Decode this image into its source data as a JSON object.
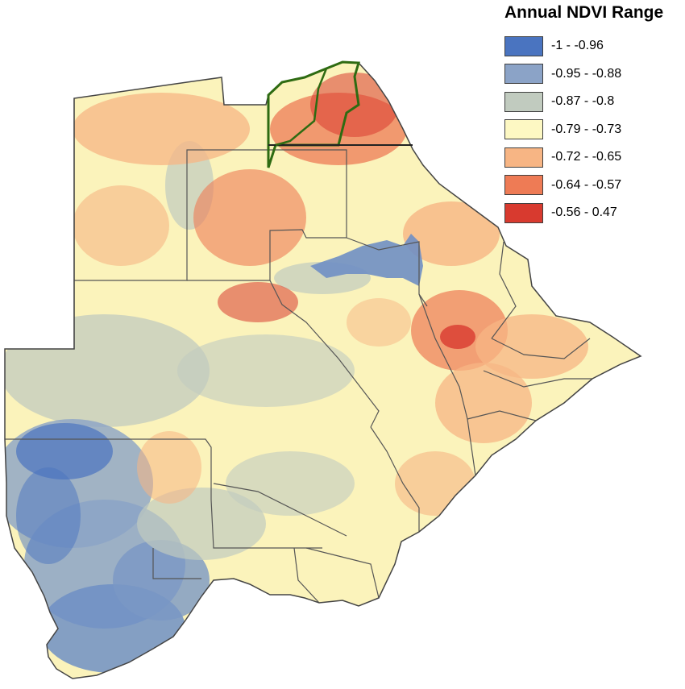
{
  "legend": {
    "title": "Annual NDVI Range",
    "items": [
      {
        "label": "-1 - -0.96",
        "color": "#4a74c0"
      },
      {
        "label": "-0.95 - -0.88",
        "color": "#8ba3c7"
      },
      {
        "label": "-0.87 - -0.8",
        "color": "#c1cbbf"
      },
      {
        "label": "-0.79 - -0.73",
        "color": "#fdf8c3"
      },
      {
        "label": "-0.72 - -0.65",
        "color": "#f7b584"
      },
      {
        "label": "-0.64 - -0.57",
        "color": "#ee7b55"
      },
      {
        "label": "-0.56 - 0.47",
        "color": "#d83a2f"
      }
    ]
  },
  "map": {
    "country_fill": "#fbf3bb",
    "boundary_color": "#555555",
    "highlight_boundary_color": "#2e6b12"
  }
}
